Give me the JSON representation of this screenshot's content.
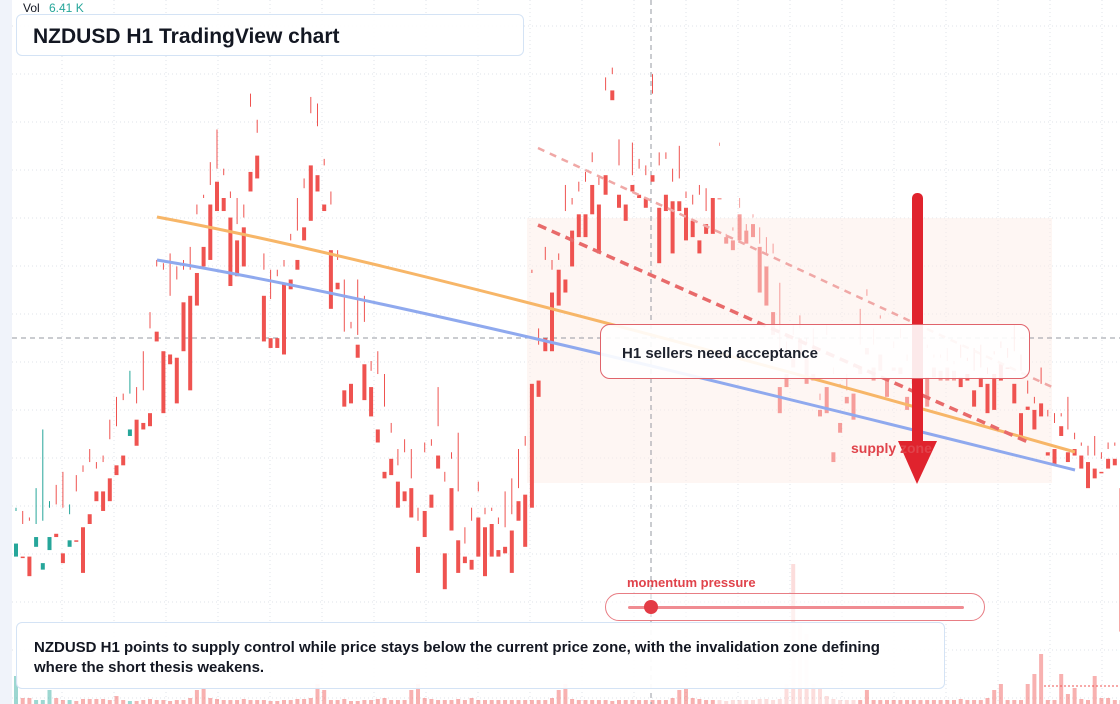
{
  "header": {
    "vol_label": "Vol",
    "vol_value": "6.41 K",
    "title": "NZDUSD H1 TradingView chart"
  },
  "annotations": {
    "callout": "H1 sellers need acceptance",
    "zone_label": "supply zone",
    "momentum_label": "momentum pressure",
    "momentum_level": 0.04,
    "summary": "NZDUSD H1 points to supply control while price stays below the current price zone, with the invalidation zone defining where the short thesis weakens."
  },
  "colors": {
    "bull": "#26a69a",
    "bear": "#ef5350",
    "arrow": "#e0232d",
    "ma_orange": "#f7b668",
    "ma_blue": "#8fa9ee",
    "channel": "#e86a6a"
  },
  "chart_data": {
    "type": "candlestick",
    "timeframe": "H1",
    "symbol": "NZDUSD",
    "candles": [
      [
        40,
        44,
        54,
        55
      ],
      [
        40,
        40,
        50,
        54
      ],
      [
        40,
        34,
        51,
        52
      ],
      [
        43,
        46,
        50,
        61
      ],
      [
        36,
        38,
        51,
        79
      ],
      [
        42,
        46,
        55,
        57
      ],
      [
        47,
        46,
        56,
        62
      ],
      [
        41,
        38,
        55,
        66
      ],
      [
        43,
        45,
        53,
        56
      ],
      [
        45,
        45,
        60,
        65
      ],
      [
        49,
        35,
        66,
        68
      ],
      [
        53,
        50,
        69,
        73
      ],
      [
        60,
        57,
        67,
        69
      ],
      [
        60,
        54,
        69,
        71
      ],
      [
        64,
        57,
        76,
        82
      ],
      [
        68,
        65,
        80,
        89
      ],
      [
        71,
        68,
        88,
        90
      ],
      [
        77,
        79,
        90,
        97
      ],
      [
        82,
        74,
        87,
        92
      ],
      [
        81,
        79,
        91,
        103
      ],
      [
        84,
        80,
        110,
        115
      ],
      [
        109,
        106,
        129,
        131
      ],
      [
        103,
        84,
        128,
        130
      ],
      [
        102,
        99,
        120,
        133
      ],
      [
        101,
        87,
        125,
        129
      ],
      [
        118,
        103,
        128,
        131
      ],
      [
        120,
        91,
        128,
        135
      ],
      [
        127,
        117,
        145,
        148
      ],
      [
        135,
        129,
        150,
        151
      ],
      [
        148,
        131,
        154,
        161
      ],
      [
        155,
        146,
        159,
        171
      ],
      [
        150,
        146,
        157,
        159
      ],
      [
        144,
        123,
        150,
        152
      ],
      [
        137,
        126,
        142,
        150
      ],
      [
        141,
        129,
        144,
        148
      ],
      [
        158,
        152,
        178,
        182
      ],
      [
        163,
        156,
        170,
        174
      ],
      [
        120,
        106,
        128,
        133
      ],
      [
        107,
        104,
        119,
        128
      ],
      [
        107,
        104,
        126,
        128
      ],
      [
        124,
        102,
        129,
        131
      ],
      [
        125,
        122,
        137,
        139
      ],
      [
        131,
        128,
        140,
        150
      ],
      [
        141,
        137,
        153,
        156
      ],
      [
        160,
        143,
        176,
        181
      ],
      [
        157,
        152,
        172,
        179
      ],
      [
        148,
        146,
        160,
        162
      ],
      [
        134,
        116,
        148,
        152
      ],
      [
        124,
        122,
        131,
        134
      ],
      [
        91,
        86,
        109,
        125
      ],
      [
        93,
        87,
        110,
        112
      ],
      [
        105,
        101,
        108,
        125
      ],
      [
        99,
        88,
        112,
        120
      ],
      [
        92,
        83,
        97,
        100
      ],
      [
        79,
        75,
        96,
        103
      ],
      [
        66,
        64,
        86,
        96
      ],
      [
        70,
        65,
        78,
        81
      ],
      [
        63,
        55,
        68,
        73
      ],
      [
        60,
        57,
        72,
        76
      ],
      [
        61,
        52,
        64,
        73
      ],
      [
        43,
        35,
        51,
        55
      ],
      [
        54,
        46,
        72,
        75
      ],
      [
        59,
        55,
        74,
        76
      ],
      [
        71,
        67,
        80,
        92
      ],
      [
        41,
        30,
        63,
        66
      ],
      [
        61,
        48,
        70,
        72
      ],
      [
        45,
        35,
        60,
        78
      ],
      [
        40,
        38,
        44,
        49
      ],
      [
        39,
        36,
        51,
        55
      ],
      [
        52,
        40,
        60,
        63
      ],
      [
        49,
        34,
        53,
        55
      ],
      [
        50,
        40,
        54,
        55
      ],
      [
        42,
        40,
        50,
        52
      ],
      [
        43,
        41,
        49,
        60
      ],
      [
        48,
        35,
        53,
        64
      ],
      [
        57,
        51,
        61,
        73
      ],
      [
        59,
        43,
        74,
        77
      ],
      [
        93,
        55,
        127,
        128
      ],
      [
        94,
        89,
        105,
        110
      ],
      [
        107,
        103,
        131,
        135
      ],
      [
        121,
        103,
        128,
        131
      ],
      [
        128,
        117,
        131,
        133
      ],
      [
        125,
        121,
        146,
        154
      ],
      [
        140,
        129,
        148,
        150
      ],
      [
        145,
        138,
        152,
        155
      ],
      [
        145,
        138,
        155,
        158
      ],
      [
        154,
        145,
        161,
        164
      ],
      [
        148,
        133,
        154,
        157
      ],
      [
        157,
        151,
        183,
        187
      ],
      [
        183,
        180,
        188,
        190
      ],
      [
        151,
        147,
        160,
        168
      ],
      [
        148,
        143,
        152,
        152
      ],
      [
        154,
        152,
        157,
        167
      ],
      [
        151,
        150,
        159,
        162
      ],
      [
        150,
        147,
        157,
        160
      ],
      [
        157,
        155,
        182,
        188
      ],
      [
        147,
        130,
        160,
        164
      ],
      [
        151,
        146,
        162,
        164
      ],
      [
        149,
        133,
        155,
        159
      ],
      [
        149,
        146,
        156,
        166
      ],
      [
        147,
        137,
        150,
        152
      ],
      [
        143,
        138,
        148,
        151
      ],
      [
        137,
        133,
        151,
        154
      ],
      [
        142,
        139,
        146,
        153
      ],
      [
        150,
        139,
        155,
        155
      ],
      [
        150,
        150,
        166,
        167
      ],
      [
        138,
        136,
        138,
        139
      ],
      [
        137,
        134,
        140,
        141
      ],
      [
        145,
        137,
        147,
        150
      ],
      [
        140,
        136,
        140,
        142
      ],
      [
        142,
        138,
        144,
        145
      ],
      [
        135,
        121,
        136,
        141
      ],
      [
        129,
        117,
        133,
        138
      ],
      [
        115,
        108,
        133,
        136
      ],
      [
        92,
        84,
        102,
        124
      ],
      [
        96,
        92,
        102,
        106
      ],
      [
        101,
        98,
        108,
        111
      ],
      [
        107,
        102,
        110,
        114
      ],
      [
        101,
        93,
        105,
        107
      ],
      [
        96,
        94,
        103,
        110
      ],
      [
        85,
        83,
        88,
        90
      ],
      [
        92,
        84,
        108,
        111
      ],
      [
        72,
        69,
        96,
        98
      ],
      [
        81,
        78,
        92,
        93
      ],
      [
        89,
        87,
        91,
        96
      ],
      [
        90,
        82,
        98,
        99
      ],
      [
        98,
        96,
        105,
        116
      ],
      [
        104,
        102,
        120,
        122
      ],
      [
        98,
        94,
        105,
        110
      ],
      [
        102,
        97,
        113,
        114
      ],
      [
        94,
        89,
        101,
        101
      ],
      [
        98,
        97,
        104,
        106
      ],
      [
        98,
        96,
        107,
        110
      ],
      [
        89,
        85,
        100,
        102
      ],
      [
        96,
        93,
        100,
        104
      ],
      [
        92,
        83,
        101,
        107
      ],
      [
        95,
        86,
        104,
        105
      ],
      [
        98,
        95,
        101,
        102
      ],
      [
        97,
        94,
        101,
        102
      ],
      [
        98,
        94,
        100,
        104
      ],
      [
        97,
        94,
        99,
        100
      ],
      [
        95,
        92,
        101,
        105
      ],
      [
        96,
        94,
        100,
        101
      ],
      [
        91,
        86,
        97,
        104
      ],
      [
        95,
        92,
        98,
        105
      ],
      [
        93,
        84,
        96,
        98
      ],
      [
        96,
        85,
        102,
        103
      ],
      [
        99,
        94,
        104,
        106
      ],
      [
        98,
        98,
        101,
        104
      ],
      [
        93,
        87,
        103,
        111
      ],
      [
        84,
        76,
        97,
        102
      ],
      [
        86,
        85,
        90,
        94
      ],
      [
        85,
        79,
        87,
        89
      ],
      [
        87,
        83,
        93,
        98
      ],
      [
        72,
        71,
        83,
        85
      ],
      [
        73,
        68,
        81,
        84
      ],
      [
        80,
        77,
        83,
        84
      ],
      [
        72,
        69,
        79,
        89
      ],
      [
        73,
        71,
        76,
        78
      ],
      [
        71,
        67,
        74,
        75
      ],
      [
        69,
        61,
        71,
        74
      ],
      [
        67,
        64,
        71,
        77
      ],
      [
        66,
        66,
        70,
        72
      ],
      [
        70,
        67,
        73,
        75
      ],
      [
        70,
        68,
        74,
        75
      ],
      [
        61,
        17,
        68,
        72
      ],
      [
        19,
        16,
        20,
        24
      ],
      [
        20,
        0,
        21,
        31
      ]
    ]
  }
}
